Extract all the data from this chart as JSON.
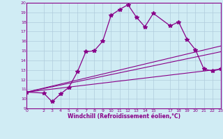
{
  "xlabel": "Windchill (Refroidissement éolien,°C)",
  "bg_color": "#d0ecf4",
  "line_color": "#880088",
  "grid_color": "#b0ccdd",
  "xlim": [
    0,
    23
  ],
  "ylim": [
    9,
    20
  ],
  "xticks": [
    0,
    2,
    3,
    4,
    5,
    6,
    7,
    8,
    9,
    10,
    11,
    12,
    13,
    14,
    15,
    17,
    18,
    19,
    20,
    21,
    22,
    23
  ],
  "yticks": [
    9,
    10,
    11,
    12,
    13,
    14,
    15,
    16,
    17,
    18,
    19,
    20
  ],
  "main_series": {
    "x": [
      0,
      2,
      3,
      4,
      5,
      6,
      7,
      8,
      9,
      10,
      11,
      12,
      13,
      14,
      15,
      17,
      18,
      19,
      20,
      21,
      22,
      23
    ],
    "y": [
      10.7,
      10.6,
      9.7,
      10.5,
      11.2,
      12.8,
      14.9,
      15.0,
      16.0,
      18.7,
      19.3,
      19.8,
      18.5,
      17.5,
      18.9,
      17.6,
      18.0,
      16.2,
      15.1,
      13.1,
      12.9,
      13.1
    ]
  },
  "linear_series": [
    {
      "x": [
        0,
        23
      ],
      "y": [
        10.7,
        13.1
      ]
    },
    {
      "x": [
        0,
        23
      ],
      "y": [
        10.7,
        14.9
      ]
    },
    {
      "x": [
        0,
        23
      ],
      "y": [
        10.7,
        15.5
      ]
    }
  ]
}
